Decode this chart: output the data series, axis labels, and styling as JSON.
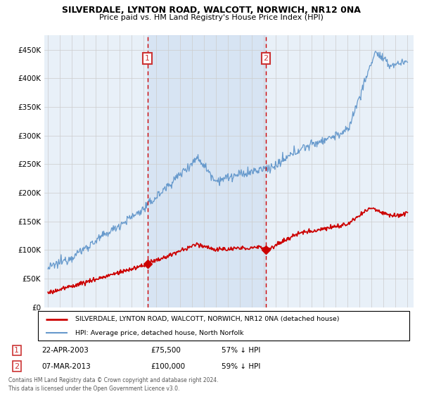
{
  "title": "SILVERDALE, LYNTON ROAD, WALCOTT, NORWICH, NR12 0NA",
  "subtitle": "Price paid vs. HM Land Registry's House Price Index (HPI)",
  "background_color": "#ffffff",
  "plot_bg_color": "#e8f0f8",
  "shade_color": "#c8daf0",
  "ylim": [
    0,
    475000
  ],
  "yticks": [
    0,
    50000,
    100000,
    150000,
    200000,
    250000,
    300000,
    350000,
    400000,
    450000
  ],
  "ytick_labels": [
    "£0",
    "£50K",
    "£100K",
    "£150K",
    "£200K",
    "£250K",
    "£300K",
    "£350K",
    "£400K",
    "£450K"
  ],
  "sale1_date_num": 2003.31,
  "sale1_price": 75500,
  "sale2_date_num": 2013.18,
  "sale2_price": 100000,
  "legend_line1": "SILVERDALE, LYNTON ROAD, WALCOTT, NORWICH, NR12 0NA (detached house)",
  "legend_line2": "HPI: Average price, detached house, North Norfolk",
  "footer": "Contains HM Land Registry data © Crown copyright and database right 2024.\nThis data is licensed under the Open Government Licence v3.0.",
  "red_color": "#cc0000",
  "blue_color": "#6699cc",
  "grid_color": "#cccccc",
  "annotation_box_color": "#cc3333",
  "xlim_left": 1994.7,
  "xlim_right": 2025.5
}
